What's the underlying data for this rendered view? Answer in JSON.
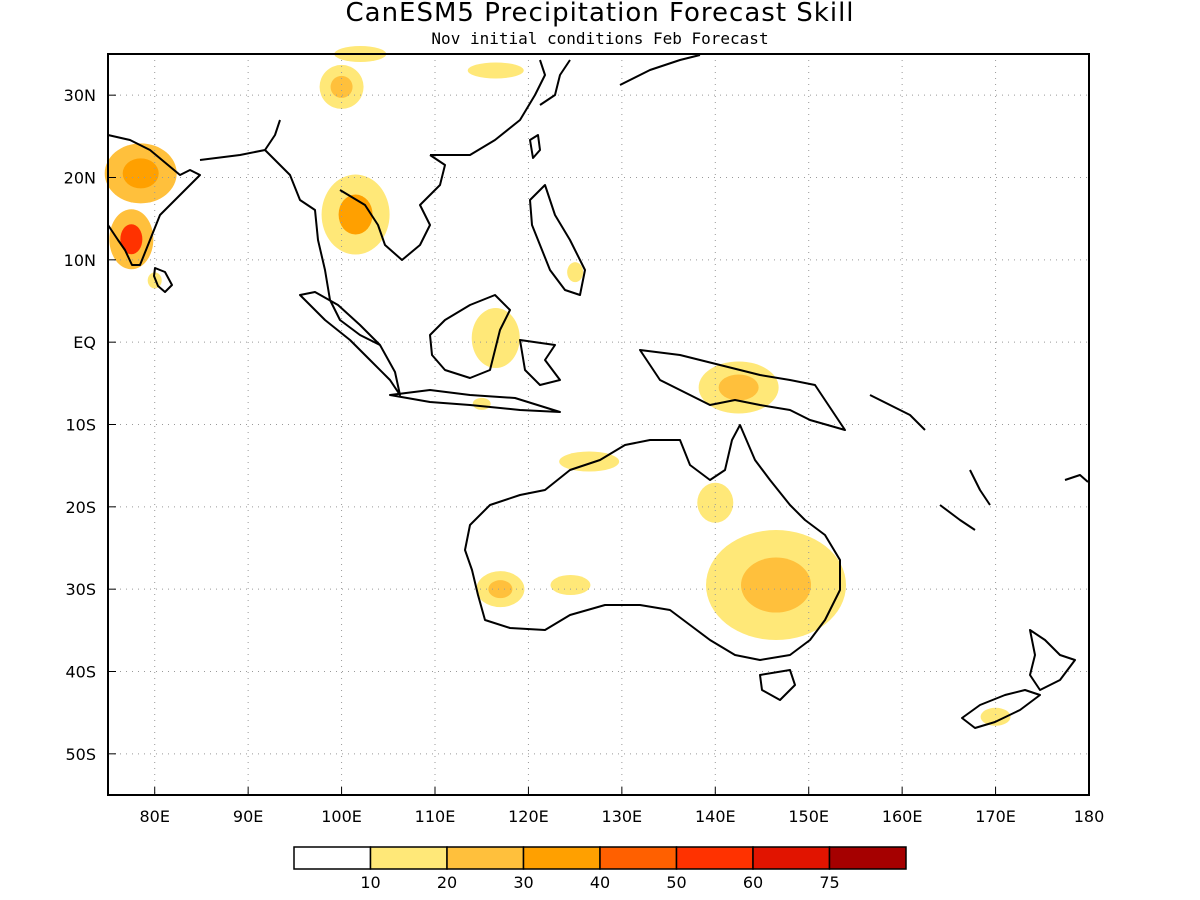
{
  "title": "CanESM5 Precipitation Forecast Skill",
  "subtitle": "Nov initial conditions  Feb Forecast",
  "map": {
    "lon_range": [
      75,
      180
    ],
    "lat_range": [
      -55,
      35
    ],
    "lon_ticks": [
      {
        "value": 80,
        "label": "80E"
      },
      {
        "value": 90,
        "label": "90E"
      },
      {
        "value": 100,
        "label": "100E"
      },
      {
        "value": 110,
        "label": "110E"
      },
      {
        "value": 120,
        "label": "120E"
      },
      {
        "value": 130,
        "label": "130E"
      },
      {
        "value": 140,
        "label": "140E"
      },
      {
        "value": 150,
        "label": "150E"
      },
      {
        "value": 160,
        "label": "160E"
      },
      {
        "value": 170,
        "label": "170E"
      },
      {
        "value": 180,
        "label": "180"
      }
    ],
    "lat_ticks": [
      {
        "value": 30,
        "label": "30N"
      },
      {
        "value": 20,
        "label": "20N"
      },
      {
        "value": 10,
        "label": "10N"
      },
      {
        "value": 0,
        "label": "EQ"
      },
      {
        "value": -10,
        "label": "10S"
      },
      {
        "value": -20,
        "label": "20S"
      },
      {
        "value": -30,
        "label": "30S"
      },
      {
        "value": -40,
        "label": "40S"
      },
      {
        "value": -50,
        "label": "50S"
      }
    ],
    "grid": true,
    "grid_style": "dotted"
  },
  "colorbar": {
    "levels": [
      "10",
      "20",
      "30",
      "40",
      "50",
      "60",
      "75"
    ],
    "colors": [
      "#ffffff",
      "#ffe878",
      "#ffc03c",
      "#ffa000",
      "#ff6000",
      "#ff3200",
      "#e11400",
      "#a50000"
    ]
  },
  "skill_regions": [
    {
      "name": "India north",
      "lon": 78.5,
      "lat": 20.5,
      "level": 2,
      "inner_level": 3
    },
    {
      "name": "India south",
      "lon": 77.5,
      "lat": 12.5,
      "level": 2,
      "inner_level": 5
    },
    {
      "name": "Sri Lanka",
      "lon": 80.0,
      "lat": 7.5,
      "level": 1
    },
    {
      "name": "Tibet",
      "lon": 100.0,
      "lat": 31.0,
      "level": 1,
      "inner_level": 2
    },
    {
      "name": "Mongolia border",
      "lon": 102.0,
      "lat": 35.0,
      "level": 1
    },
    {
      "name": "North China",
      "lon": 116.5,
      "lat": 33.0,
      "level": 1
    },
    {
      "name": "Indochina",
      "lon": 101.5,
      "lat": 15.5,
      "level": 1,
      "inner_level": 3
    },
    {
      "name": "Borneo",
      "lon": 116.5,
      "lat": 0.5,
      "level": 1
    },
    {
      "name": "Philippines",
      "lon": 125.0,
      "lat": 8.5,
      "level": 1
    },
    {
      "name": "Java",
      "lon": 115.0,
      "lat": -7.5,
      "level": 1
    },
    {
      "name": "New Guinea",
      "lon": 142.5,
      "lat": -5.5,
      "level": 1,
      "inner_level": 2
    },
    {
      "name": "North Australia",
      "lon": 126.5,
      "lat": -14.5,
      "level": 1
    },
    {
      "name": "Cape York",
      "lon": 140.0,
      "lat": -19.5,
      "level": 1
    },
    {
      "name": "SW Australia",
      "lon": 117.0,
      "lat": -30.0,
      "level": 1,
      "inner_level": 2
    },
    {
      "name": "South Australia",
      "lon": 124.5,
      "lat": -29.5,
      "level": 1
    },
    {
      "name": "East Australia",
      "lon": 146.5,
      "lat": -29.5,
      "level": 1,
      "inner_level": 2
    },
    {
      "name": "New Zealand",
      "lon": 170.0,
      "lat": -45.5,
      "level": 1
    }
  ]
}
